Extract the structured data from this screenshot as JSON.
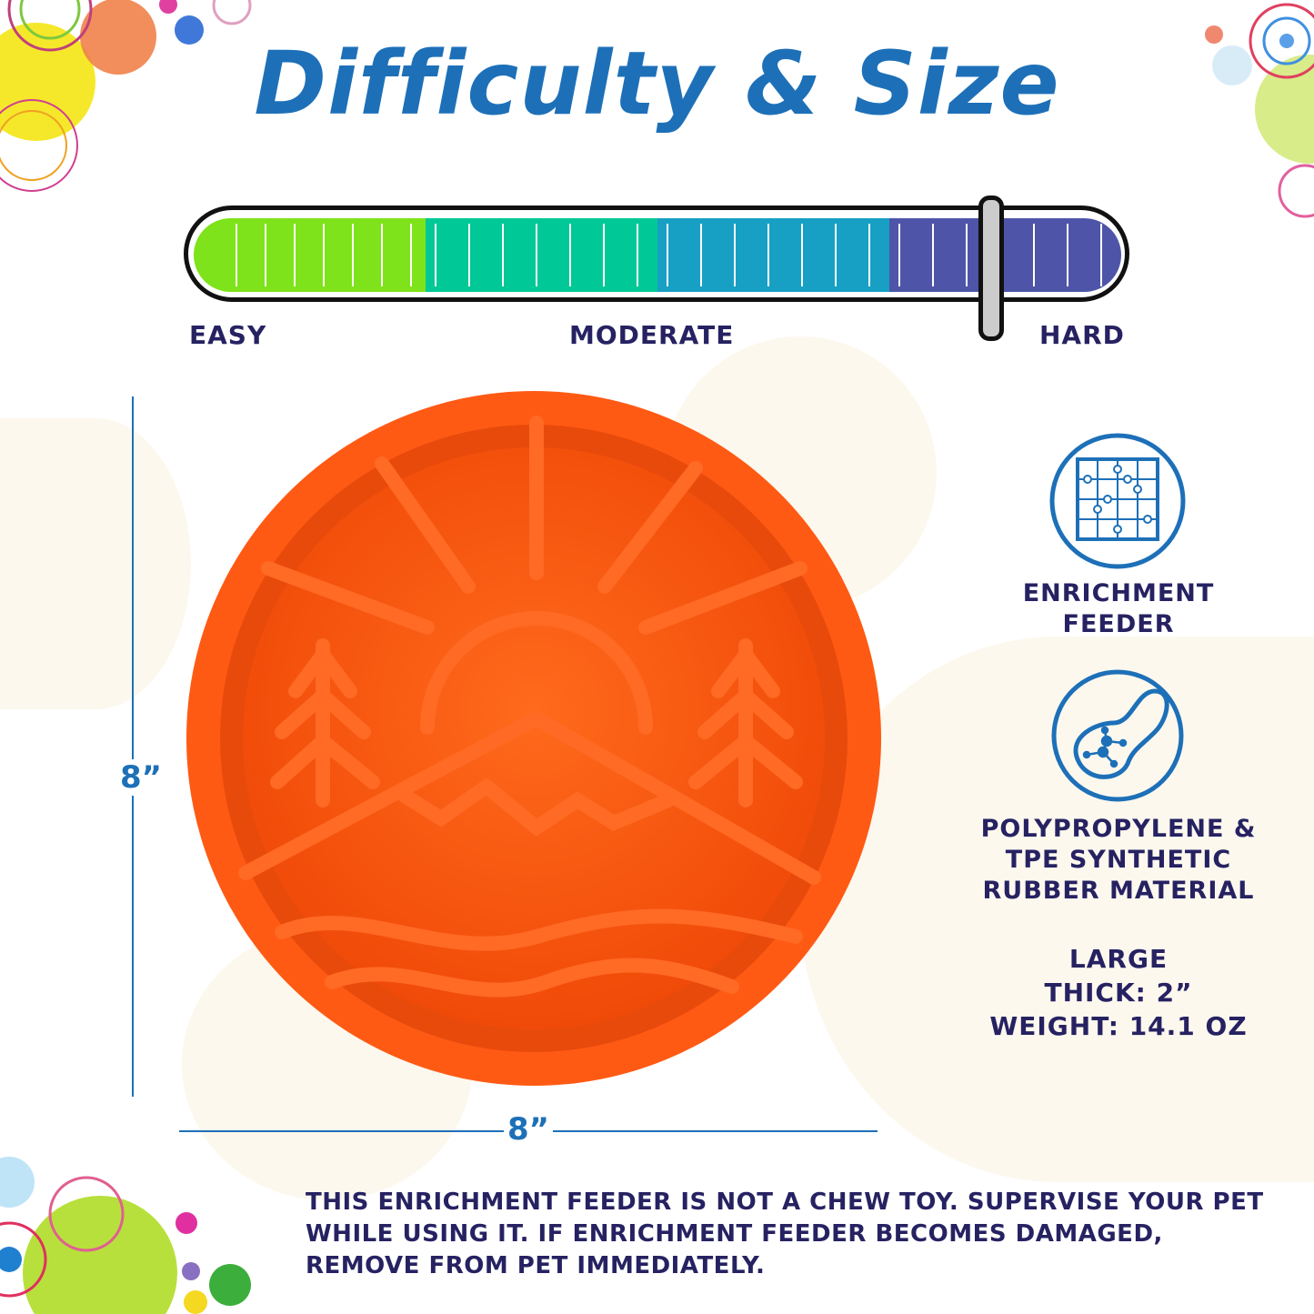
{
  "title": "Difficulty & Size",
  "difficulty": {
    "labels": {
      "easy": "EASY",
      "moderate": "MODERATE",
      "hard": "HARD"
    },
    "level": 0.86,
    "segment_colors": [
      "#7ee31a",
      "#00c896",
      "#17a0c4",
      "#4e55a8"
    ]
  },
  "dimensions": {
    "height": "8”",
    "width": "8”"
  },
  "features": [
    {
      "icon": "puzzle-icon",
      "lines": [
        "ENRICHMENT",
        "FEEDER"
      ]
    },
    {
      "icon": "material-molecule-icon",
      "lines": [
        "POLYPROPYLENE  &",
        "TPE SYNTHETIC",
        "RUBBER MATERIAL"
      ]
    }
  ],
  "specs": [
    "LARGE",
    "THICK: 2”",
    "WEIGHT: 14.1 OZ"
  ],
  "warning": "THIS ENRICHMENT FEEDER IS NOT A CHEW TOY. SUPERVISE YOUR PET WHILE USING IT. IF ENRICHMENT FEEDER BECOMES DAMAGED, REMOVE FROM PET IMMEDIATELY.",
  "colors": {
    "title": "#1d70b8",
    "text": "#262262",
    "product": "#ff5a14"
  }
}
